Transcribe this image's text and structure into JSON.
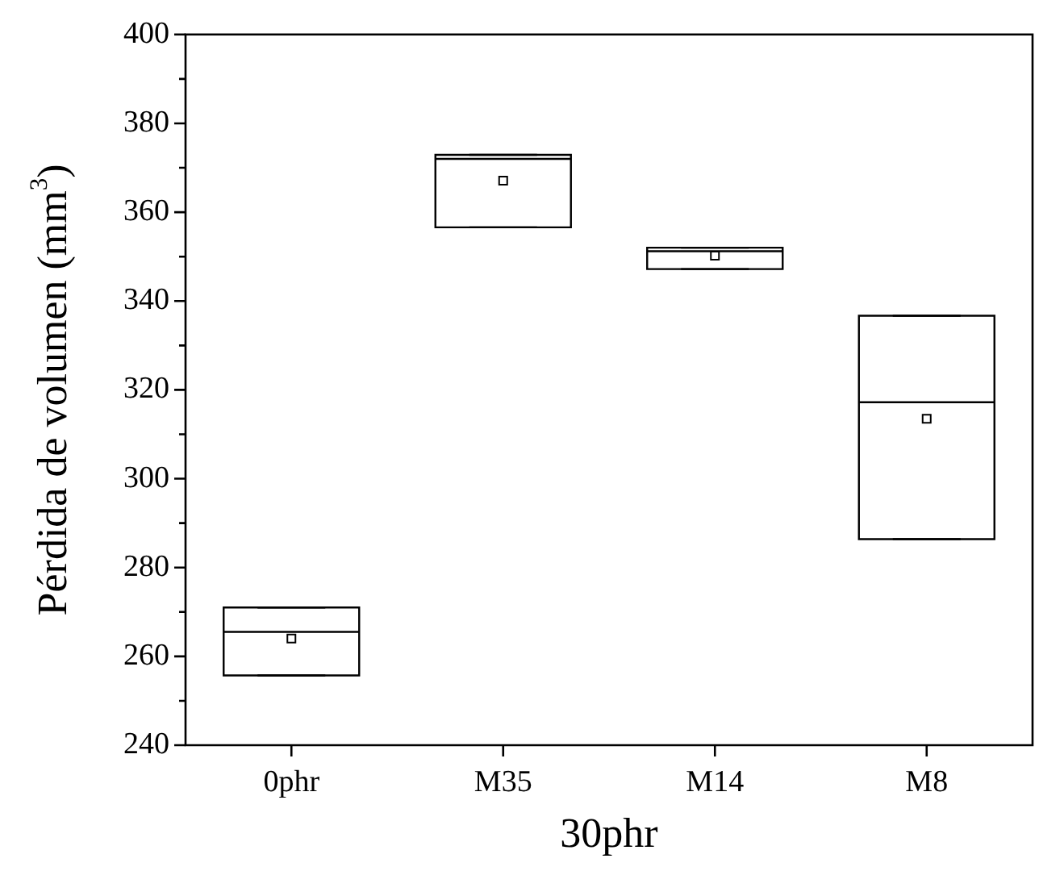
{
  "chart_data": {
    "type": "box",
    "xlabel": "30phr",
    "ylabel": "Pérdida de volumen (mm$^{3}$)",
    "categories": [
      "0phr",
      "M35",
      "M14",
      "M8"
    ],
    "boxes": [
      {
        "low": 255.7,
        "q1": 255.7,
        "median": 265.5,
        "q3": 271.0,
        "high": 271.0,
        "mean": 264.0
      },
      {
        "low": 356.6,
        "q1": 356.6,
        "median": 372.0,
        "q3": 372.9,
        "high": 372.9,
        "mean": 367.1
      },
      {
        "low": 347.2,
        "q1": 347.2,
        "median": 351.2,
        "q3": 352.0,
        "high": 352.0,
        "mean": 350.2
      },
      {
        "low": 286.4,
        "q1": 286.4,
        "median": 317.2,
        "q3": 336.7,
        "high": 336.7,
        "mean": 313.5
      }
    ],
    "color": "#000000",
    "ylim": [
      240,
      400
    ],
    "yticks": [
      240,
      {
        "value": 250,
        "label": null
      },
      260,
      {
        "value": 270,
        "label": null
      },
      280,
      {
        "value": 290,
        "label": null
      },
      300,
      {
        "value": 310,
        "label": null
      },
      320,
      {
        "value": 330,
        "label": null
      },
      340,
      {
        "value": 350,
        "label": null
      },
      360,
      {
        "value": 370,
        "label": null
      },
      380,
      {
        "value": 390,
        "label": null
      },
      400
    ],
    "grid": false,
    "legend": false,
    "marker": "square"
  }
}
